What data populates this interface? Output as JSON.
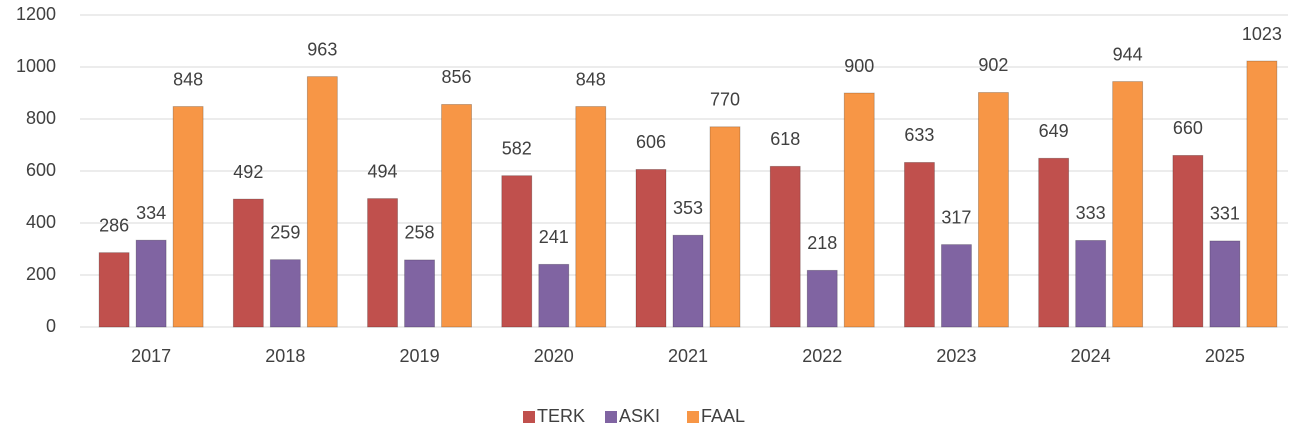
{
  "chart_data": {
    "type": "bar",
    "categories": [
      "2017",
      "2018",
      "2019",
      "2020",
      "2021",
      "2022",
      "2023",
      "2024",
      "2025"
    ],
    "series": [
      {
        "name": "TERK",
        "color": "#c0504d",
        "values": [
          286,
          492,
          494,
          582,
          606,
          618,
          633,
          649,
          660
        ]
      },
      {
        "name": "ASKI",
        "color": "#8064a2",
        "values": [
          334,
          259,
          258,
          241,
          353,
          218,
          317,
          333,
          331
        ]
      },
      {
        "name": "FAAL",
        "color": "#f79646",
        "values": [
          848,
          963,
          856,
          848,
          770,
          900,
          902,
          944,
          1023
        ]
      }
    ],
    "ylim": [
      0,
      1200
    ],
    "yticks": [
      0,
      200,
      400,
      600,
      800,
      1000,
      1200
    ],
    "grid": true,
    "legend": "bottom"
  }
}
